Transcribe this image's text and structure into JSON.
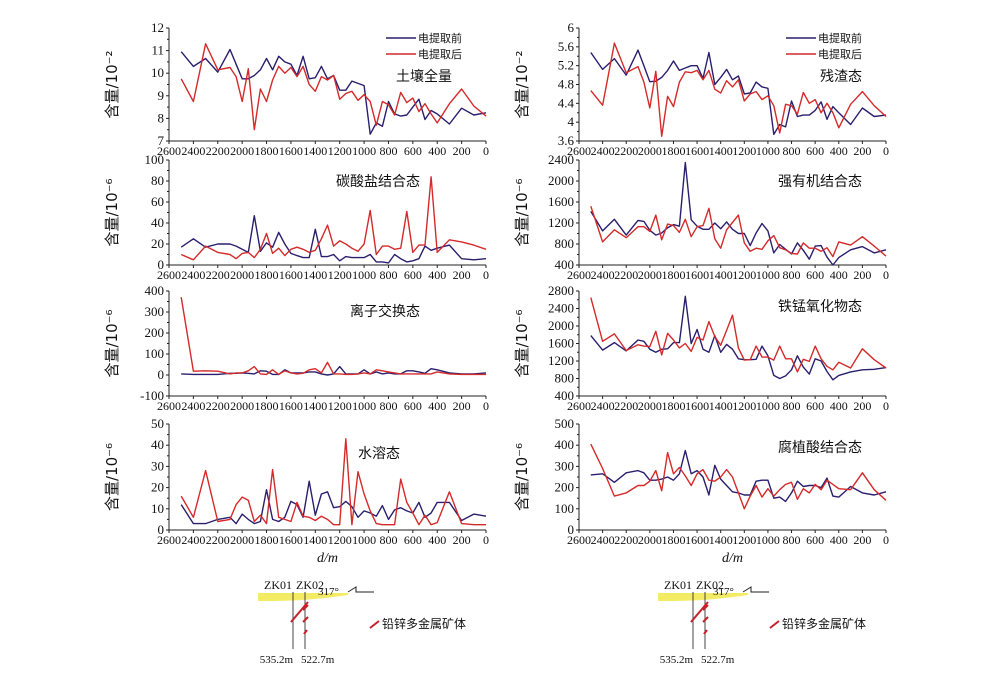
{
  "colors": {
    "before": "#2a1f6e",
    "after": "#d42a2a",
    "axis": "#222222",
    "stratum": "#f2e84a",
    "orebody": "#c8202a"
  },
  "legend": {
    "before": "电提取前",
    "after": "电提取后"
  },
  "shared": {
    "xlabel": "d/m",
    "xlim": [
      2600,
      0
    ],
    "xticks": [
      2600,
      2400,
      2200,
      2000,
      1800,
      1600,
      1400,
      1200,
      1000,
      800,
      600,
      400,
      200,
      0
    ],
    "x": [
      2500,
      2400,
      2300,
      2200,
      2100,
      2050,
      2000,
      1950,
      1900,
      1850,
      1800,
      1750,
      1700,
      1650,
      1600,
      1550,
      1500,
      1450,
      1400,
      1350,
      1300,
      1250,
      1200,
      1150,
      1100,
      1050,
      1000,
      950,
      900,
      850,
      800,
      750,
      700,
      650,
      600,
      550,
      500,
      450,
      400,
      300,
      200,
      100,
      0
    ]
  },
  "chart_data": [
    {
      "type": "line",
      "id": "soil-total",
      "title": "土壤全量",
      "ylabel": "含量/10⁻²",
      "ylim": [
        7,
        12
      ],
      "yticks": [
        7,
        8,
        9,
        10,
        11,
        12
      ],
      "legend": "top-right",
      "series": [
        {
          "name": "电提取前",
          "values": [
            10.95,
            10.3,
            10.65,
            10.05,
            11.05,
            10.4,
            9.75,
            9.75,
            9.9,
            10.15,
            10.65,
            10.15,
            10.75,
            10.5,
            10.4,
            9.9,
            10.75,
            9.75,
            9.8,
            10.3,
            9.75,
            9.9,
            9.25,
            9.25,
            9.65,
            9.55,
            9.45,
            7.3,
            7.8,
            7.65,
            8.75,
            8.2,
            8.1,
            8.15,
            8.5,
            8.85,
            7.95,
            8.35,
            8.2,
            7.75,
            8.45,
            8.15,
            8.25
          ]
        },
        {
          "name": "电提取后",
          "values": [
            9.75,
            8.75,
            11.3,
            10.15,
            10.25,
            9.85,
            8.75,
            10.2,
            7.5,
            9.3,
            8.75,
            9.7,
            10.3,
            10.0,
            10.25,
            9.85,
            10.3,
            9.5,
            9.2,
            9.85,
            9.7,
            9.9,
            8.85,
            9.1,
            9.2,
            8.8,
            9.05,
            8.75,
            7.7,
            8.75,
            8.6,
            8.15,
            9.15,
            8.7,
            8.9,
            8.3,
            8.65,
            8.2,
            7.8,
            8.65,
            9.3,
            8.55,
            8.1
          ]
        }
      ]
    },
    {
      "type": "line",
      "id": "residual",
      "title": "残渣态",
      "ylabel": "含量/10⁻²",
      "ylim": [
        3.6,
        6
      ],
      "yticks": [
        3.6,
        4,
        4.4,
        4.8,
        5.2,
        5.6,
        6
      ],
      "legend": "top-right",
      "series": [
        {
          "name": "电提取前",
          "values": [
            5.48,
            5.12,
            5.35,
            5.0,
            5.53,
            5.2,
            4.86,
            4.87,
            4.95,
            5.1,
            5.3,
            5.1,
            5.15,
            5.2,
            5.2,
            4.93,
            5.48,
            4.8,
            4.95,
            5.12,
            4.9,
            4.98,
            4.6,
            4.62,
            4.85,
            4.75,
            4.72,
            3.74,
            3.95,
            3.9,
            4.45,
            4.12,
            4.15,
            4.15,
            4.25,
            4.43,
            4.06,
            4.33,
            4.2,
            3.95,
            4.3,
            4.12,
            4.15
          ]
        },
        {
          "name": "电提取后",
          "values": [
            4.67,
            4.36,
            5.68,
            5.05,
            5.18,
            4.85,
            4.3,
            5.08,
            3.7,
            4.55,
            4.33,
            4.85,
            5.07,
            5.05,
            5.1,
            4.9,
            5.1,
            4.7,
            4.62,
            4.88,
            4.75,
            4.9,
            4.45,
            4.6,
            4.65,
            4.48,
            4.56,
            4.35,
            3.77,
            4.38,
            4.35,
            4.17,
            4.63,
            4.4,
            4.48,
            4.2,
            4.4,
            4.2,
            3.88,
            4.38,
            4.65,
            4.35,
            4.12
          ]
        }
      ]
    },
    {
      "type": "line",
      "id": "carbonate",
      "title": "碳酸盐结合态",
      "ylabel": "含量/10⁻⁶",
      "ylim": [
        0,
        100
      ],
      "yticks": [
        0,
        20,
        40,
        60,
        80,
        100
      ],
      "series": [
        {
          "name": "电提取前",
          "values": [
            17,
            25,
            17,
            20,
            20,
            18,
            15,
            12,
            47,
            13,
            21,
            17,
            31,
            20,
            11,
            9,
            7,
            7,
            34,
            8,
            8,
            10,
            4,
            8,
            7,
            7,
            7,
            10,
            3,
            3,
            2,
            10,
            6,
            3,
            4,
            6,
            18,
            14,
            16,
            19,
            6,
            5,
            6
          ]
        },
        {
          "name": "电提取后",
          "values": [
            10,
            5,
            18,
            12,
            10,
            6,
            11,
            12,
            7,
            15,
            30,
            11,
            16,
            9,
            15,
            17,
            15,
            12,
            14,
            25,
            38,
            18,
            23,
            20,
            16,
            13,
            20,
            52,
            10,
            18,
            18,
            15,
            16,
            51,
            12,
            19,
            19,
            84,
            12,
            24,
            22,
            19,
            15
          ]
        }
      ]
    },
    {
      "type": "line",
      "id": "strong-organic",
      "title": "强有机结合态",
      "ylabel": "含量/10⁻⁶",
      "ylim": [
        400,
        2400
      ],
      "yticks": [
        400,
        800,
        1200,
        1600,
        2000,
        2400
      ],
      "series": [
        {
          "name": "电提取前",
          "values": [
            1420,
            1050,
            1270,
            970,
            1250,
            1230,
            1060,
            970,
            1010,
            1110,
            1170,
            1140,
            2350,
            1260,
            1140,
            1080,
            1080,
            1200,
            1090,
            1220,
            1080,
            1000,
            1000,
            770,
            1010,
            1190,
            1050,
            630,
            790,
            700,
            610,
            820,
            680,
            510,
            760,
            770,
            550,
            400,
            540,
            690,
            750,
            630,
            690
          ]
        },
        {
          "name": "电提取后",
          "values": [
            1520,
            840,
            1070,
            920,
            1130,
            1130,
            1040,
            1350,
            880,
            1180,
            1150,
            1020,
            1270,
            940,
            1130,
            1150,
            1480,
            900,
            720,
            1070,
            1210,
            1350,
            820,
            660,
            720,
            700,
            860,
            960,
            730,
            690,
            620,
            610,
            820,
            720,
            720,
            660,
            730,
            560,
            840,
            780,
            940,
            760,
            570
          ]
        }
      ]
    },
    {
      "type": "line",
      "id": "ion-exchange",
      "title": "离子交换态",
      "ylabel": "含量/10⁻⁶",
      "ylim": [
        -100,
        400
      ],
      "yticks": [
        -100,
        0,
        100,
        200,
        300,
        400
      ],
      "series": [
        {
          "name": "电提取前",
          "values": [
            5,
            3,
            3,
            3,
            8,
            8,
            10,
            8,
            5,
            20,
            18,
            3,
            3,
            25,
            10,
            10,
            10,
            15,
            15,
            5,
            0,
            5,
            40,
            5,
            5,
            5,
            25,
            5,
            15,
            5,
            10,
            5,
            5,
            20,
            20,
            15,
            8,
            30,
            25,
            10,
            5,
            5,
            10
          ]
        },
        {
          "name": "电提取后",
          "values": [
            370,
            18,
            20,
            18,
            5,
            10,
            10,
            20,
            40,
            5,
            3,
            25,
            3,
            20,
            10,
            5,
            8,
            25,
            30,
            10,
            60,
            5,
            5,
            3,
            3,
            5,
            10,
            5,
            25,
            20,
            15,
            10,
            5,
            5,
            5,
            5,
            5,
            5,
            15,
            5,
            3,
            3,
            3
          ]
        }
      ]
    },
    {
      "type": "line",
      "id": "fe-mn-oxide",
      "title": "铁锰氧化物态",
      "ylabel": "含量/10⁻⁶",
      "ylim": [
        400,
        2800
      ],
      "yticks": [
        400,
        800,
        1200,
        1600,
        2000,
        2400,
        2800
      ],
      "series": [
        {
          "name": "电提取前",
          "values": [
            1780,
            1450,
            1620,
            1430,
            1680,
            1650,
            1470,
            1400,
            1470,
            1480,
            1620,
            1620,
            2680,
            1600,
            1920,
            1470,
            1400,
            1780,
            1400,
            1580,
            1470,
            1250,
            1230,
            1230,
            1240,
            1540,
            1320,
            870,
            800,
            860,
            1000,
            1320,
            1060,
            900,
            1250,
            1200,
            960,
            770,
            870,
            950,
            1000,
            1010,
            1050
          ]
        },
        {
          "name": "电提取后",
          "values": [
            2650,
            1650,
            1820,
            1440,
            1570,
            1540,
            1530,
            1880,
            1340,
            1830,
            1680,
            1500,
            1600,
            1420,
            1740,
            1680,
            2100,
            1760,
            1560,
            1900,
            2250,
            1500,
            1220,
            1230,
            1540,
            1290,
            1290,
            1220,
            1540,
            1250,
            1250,
            950,
            1240,
            1190,
            1540,
            1250,
            1080,
            1000,
            1170,
            1040,
            1480,
            1230,
            1040
          ]
        }
      ]
    },
    {
      "type": "line",
      "id": "water-soluble",
      "title": "水溶态",
      "ylabel": "含量/10⁻⁶",
      "ylim": [
        0,
        50
      ],
      "yticks": [
        0,
        10,
        20,
        30,
        40,
        50
      ],
      "xlabel_shown": true,
      "series": [
        {
          "name": "电提取前",
          "values": [
            12,
            3,
            3,
            5,
            6,
            3,
            7.5,
            5,
            3,
            4,
            19,
            5,
            4,
            6,
            13.5,
            12,
            6,
            23,
            7,
            17,
            18,
            10.5,
            11,
            13.5,
            11,
            6,
            9,
            8,
            6.5,
            11.5,
            5,
            9.5,
            10.5,
            9,
            8,
            13,
            6,
            8,
            13,
            13,
            4.5,
            7.5,
            6.5
          ]
        },
        {
          "name": "电提取后",
          "values": [
            16,
            6,
            28,
            4,
            5,
            12,
            15.5,
            14,
            4,
            7,
            3,
            28.5,
            6,
            5,
            4,
            13,
            6.5,
            6,
            4.5,
            6.5,
            5,
            2.5,
            2.5,
            43,
            2.5,
            27.5,
            17,
            9,
            3,
            2.5,
            2.5,
            2.5,
            24,
            13,
            8,
            2.5,
            7,
            2.5,
            3.5,
            18,
            3,
            2.5,
            2.5
          ]
        }
      ]
    },
    {
      "type": "line",
      "id": "humic-acid",
      "title": "腐植酸结合态",
      "ylabel": "含量/10⁻⁶",
      "ylim": [
        0,
        500
      ],
      "yticks": [
        0,
        100,
        200,
        300,
        400,
        500
      ],
      "xlabel_shown": true,
      "series": [
        {
          "name": "电提取前",
          "values": [
            260,
            265,
            225,
            270,
            280,
            270,
            235,
            235,
            240,
            250,
            235,
            265,
            375,
            265,
            280,
            250,
            165,
            305,
            240,
            210,
            180,
            175,
            165,
            165,
            230,
            235,
            235,
            150,
            155,
            135,
            175,
            230,
            205,
            210,
            210,
            200,
            245,
            160,
            155,
            205,
            175,
            165,
            180
          ]
        },
        {
          "name": "电提取后",
          "values": [
            405,
            290,
            160,
            175,
            210,
            210,
            230,
            280,
            185,
            365,
            265,
            295,
            255,
            210,
            265,
            285,
            235,
            230,
            250,
            285,
            250,
            175,
            100,
            160,
            210,
            155,
            195,
            160,
            190,
            215,
            225,
            145,
            195,
            175,
            215,
            190,
            235,
            215,
            195,
            190,
            270,
            190,
            140
          ]
        }
      ]
    }
  ],
  "cross_sections": [
    {
      "id": "section-left",
      "borehole_labels": [
        "ZK01",
        "ZK02"
      ],
      "depth_labels": [
        "535.2m",
        "522.7m"
      ],
      "bearing": "317°",
      "legend_label": "铅锌多金属矿体"
    },
    {
      "id": "section-right",
      "borehole_labels": [
        "ZK01",
        "ZK02"
      ],
      "depth_labels": [
        "535.2m",
        "522.7m"
      ],
      "bearing": "317°",
      "legend_label": "铅锌多金属矿体"
    }
  ]
}
